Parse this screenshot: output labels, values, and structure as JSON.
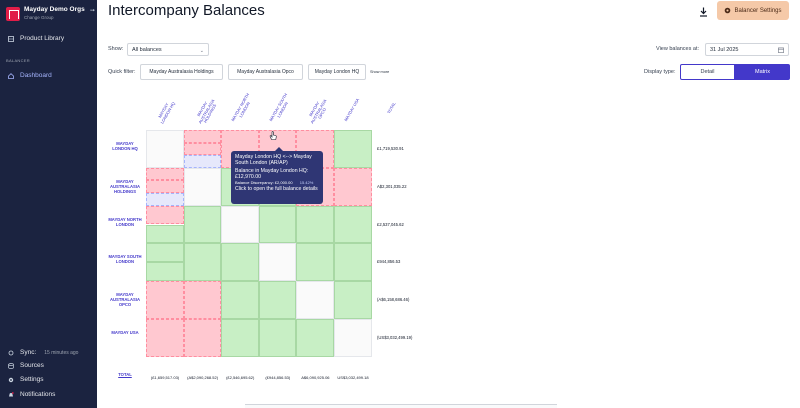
{
  "sidebar": {
    "org_name": "Mayday Demo Orgs",
    "org_sub": "Change Group",
    "items": {
      "product_library": "Product Library",
      "section_balancer": "BALANCER",
      "dashboard": "Dashboard",
      "sync": "Sync:",
      "sync_time": "15 minutes ago",
      "sources": "Sources",
      "settings": "Settings",
      "notifications": "Notifications"
    }
  },
  "header": {
    "title": "Intercompany Balances",
    "settings_button": "Balancer Settings"
  },
  "controls": {
    "show_label": "Show:",
    "show_value": "All balances",
    "view_label": "View balances at:",
    "view_date": "31 Jul 2025",
    "quick_filter_label": "Quick filter:",
    "quick_filters": [
      "Mayday Australasia Holdings",
      "Mayday Australasia Opco",
      "Mayday London HQ"
    ],
    "show_more": "Show more",
    "display_type_label": "Display type:",
    "display_detail": "Detail",
    "display_matrix": "Matrix"
  },
  "matrix": {
    "columns": [
      "MAYDAY\nLONDON HQ",
      "MAYDAY\nAUSTRALASIA\nHOLDINGS",
      "MAYDAY NORTH\nLONDON",
      "MAYDAY SOUTH\nLONDON",
      "MAYDAY\nAUSTRALASIA\nOPCO",
      "MAYDAY USA"
    ],
    "total_header": "TOTAL",
    "rows": [
      {
        "name": "MAYDAY\nLONDON HQ",
        "total": "£1,719,530.91"
      },
      {
        "name": "MAYDAY\nAUSTRALASIA\nHOLDINGS",
        "total": "A$2,301,035.22"
      },
      {
        "name": "MAYDAY NORTH\nLONDON",
        "total": "£2,537,045.62"
      },
      {
        "name": "MAYDAY SOUTH\nLONDON",
        "total": "£944,856.53"
      },
      {
        "name": "MAYDAY\nAUSTRALASIA\nOPCO",
        "total": "(A$6,158,686.46)"
      },
      {
        "name": "MAYDAY USA",
        "total": "(US$3,032,499.19)"
      }
    ],
    "total_row_label": "TOTAL",
    "column_totals": [
      "(£1,659,517.03)",
      "(A$2,090,268.52)",
      "(£2,546,695.62)",
      "(£944,856.53)",
      "A$6,090,925.06",
      "US$3,032,499.18"
    ]
  },
  "tooltip": {
    "line1": "Mayday London HQ <--> Mayday South London (AR/AP)",
    "line2": "Balance in Mayday London HQ:",
    "line3": "£12,970.00",
    "line4": "Balance Discrepancy: £2,000.00",
    "pct": "15.42%",
    "line5": "Click to open the full balance details"
  },
  "colors": {
    "sidebar_bg": "#1b2340",
    "accent": "#4338ca",
    "settings_btn": "#f5c9a8",
    "match_green": "#c8efc5",
    "mismatch_red": "#ffc8d0"
  }
}
